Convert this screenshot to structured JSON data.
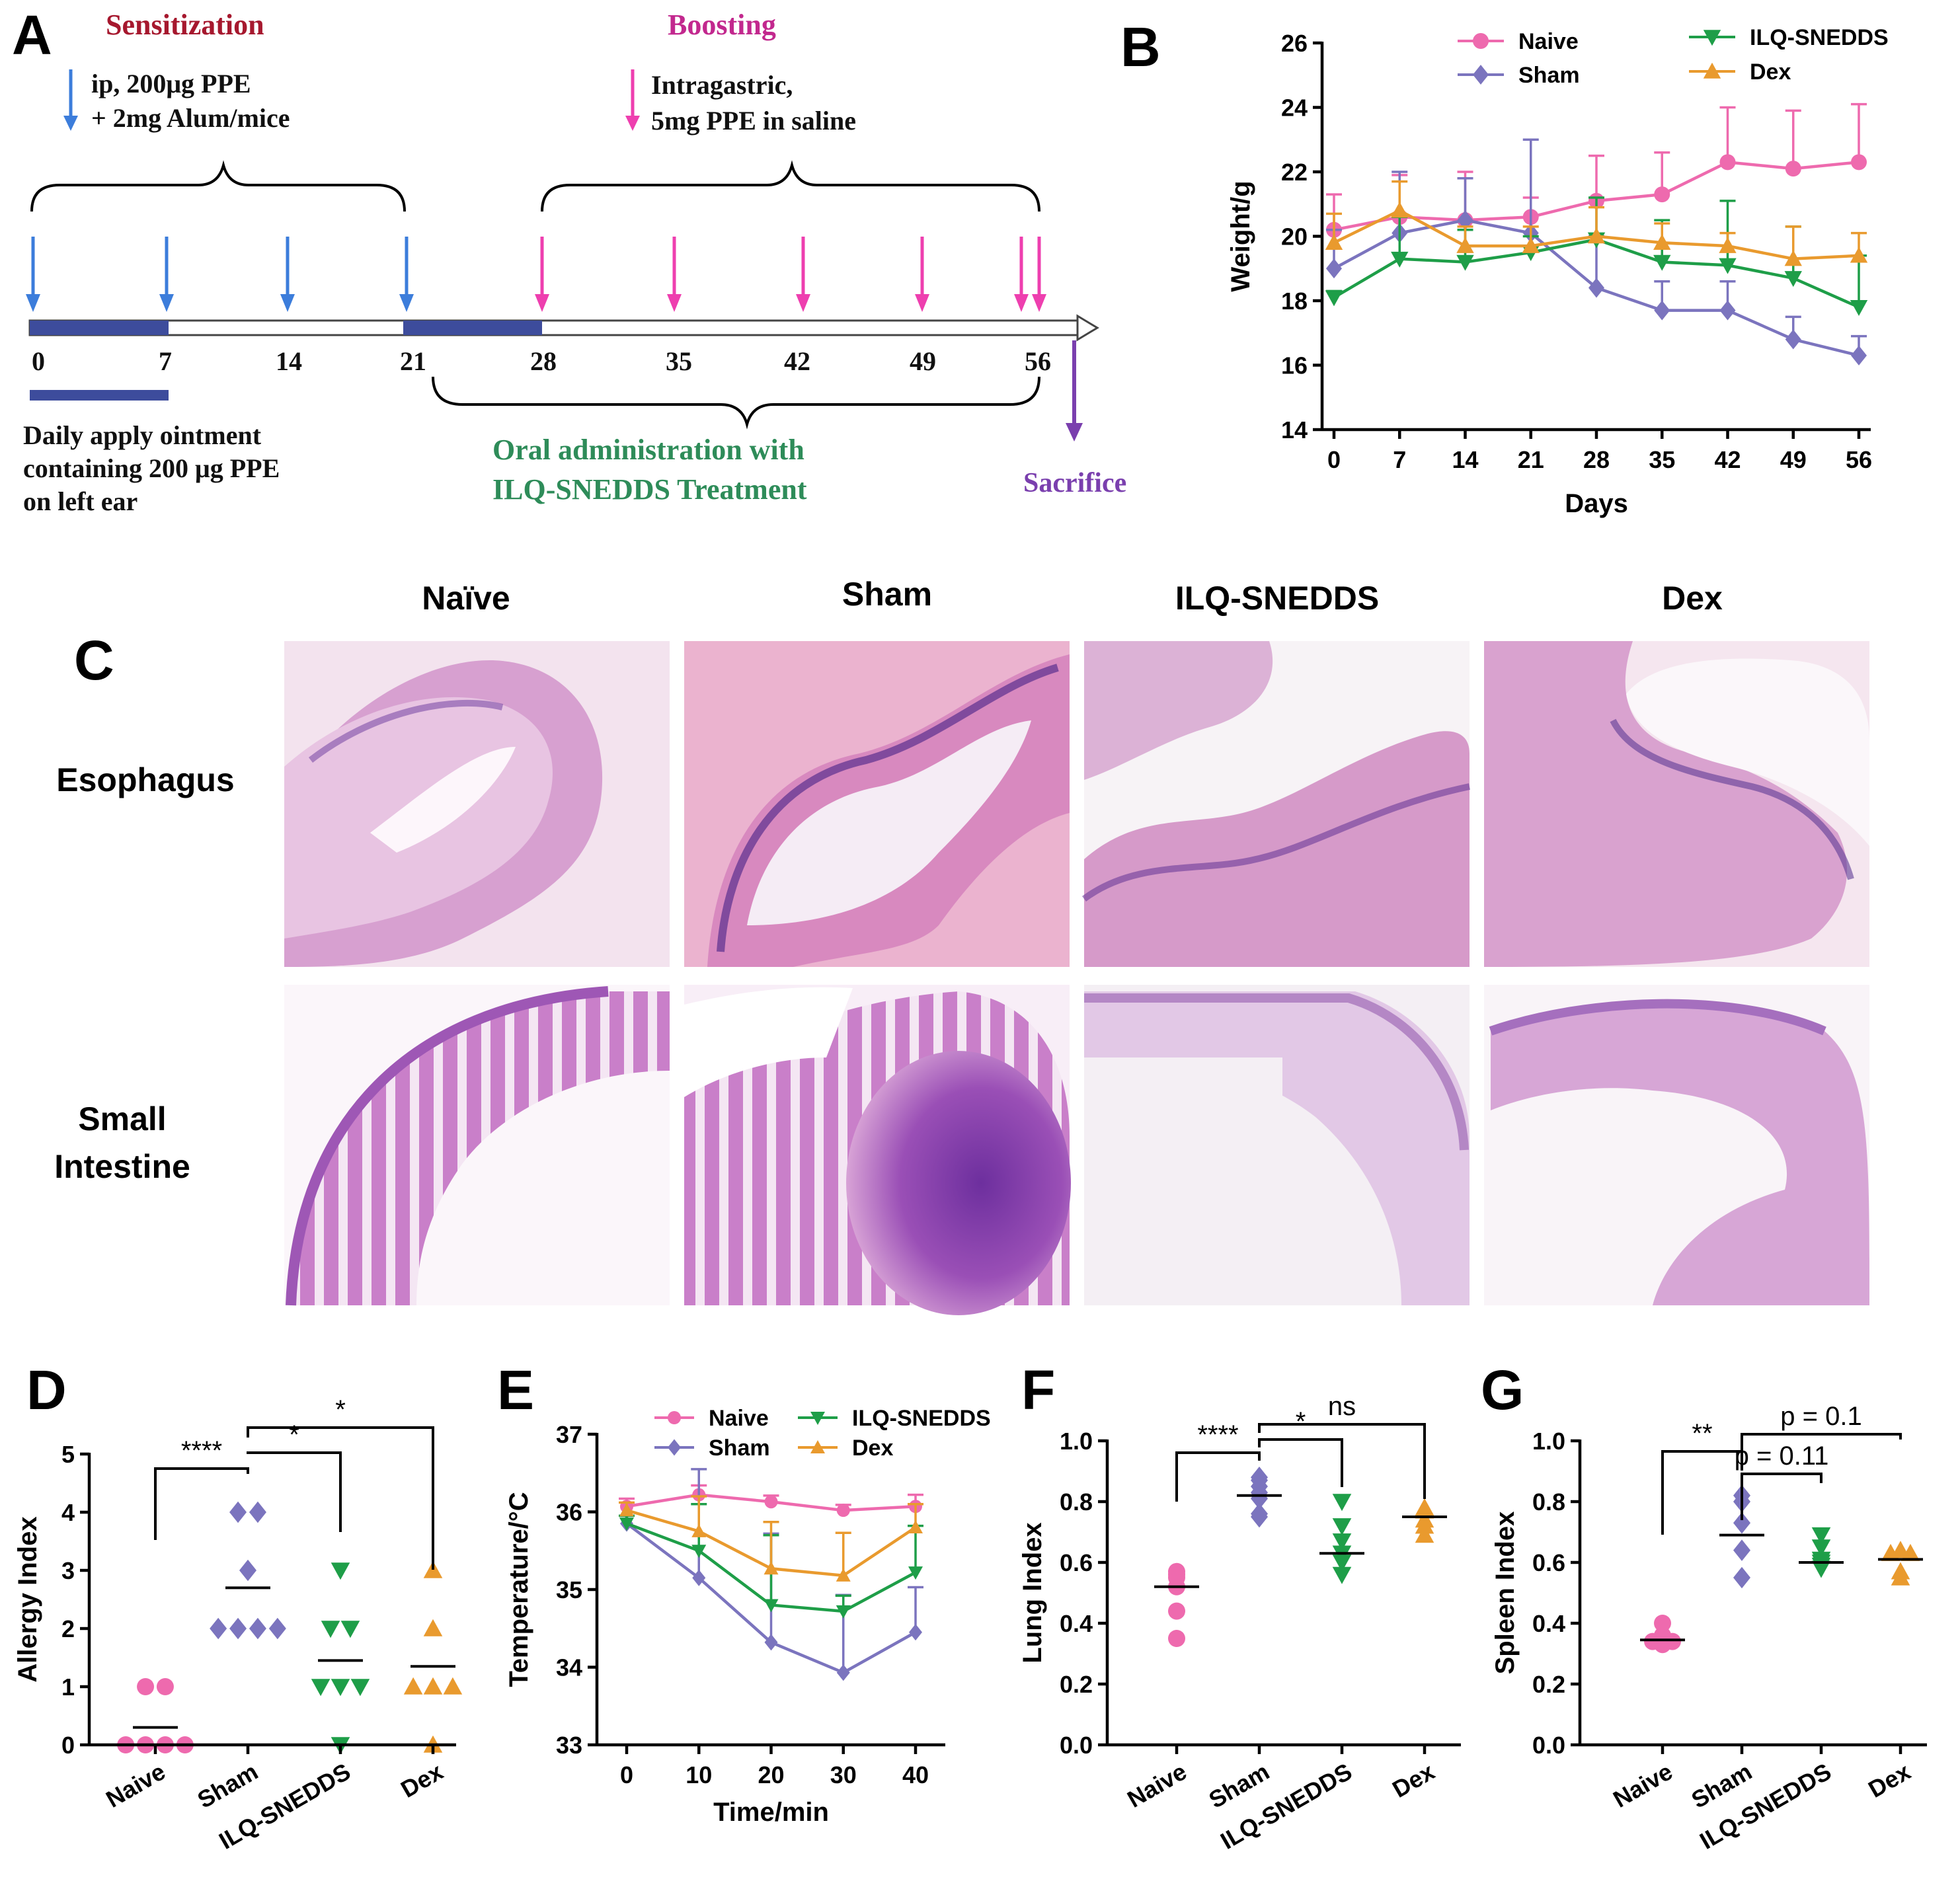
{
  "colors": {
    "naive": "#EE6AAE",
    "sham": "#7B74BE",
    "ilq": "#1E9E48",
    "dex": "#E99A2E",
    "blue_arrow": "#3C7DDB",
    "pink_arrow": "#EE3FAF",
    "purple_arrow": "#7A3FAE",
    "bar_blue": "#3D4C9C",
    "title_red": "#A6182E",
    "title_pink": "#C2288E",
    "oral_green": "#2E8C59",
    "sacrifice_purple": "#7A3FAE"
  },
  "panel_labels": {
    "a": "A",
    "b": "B",
    "c": "C",
    "d": "D",
    "e": "E",
    "f": "F",
    "g": "G"
  },
  "timeline": {
    "sensitization_title": "Sensitization",
    "boosting_title": "Boosting",
    "ip_line1": "ip, 200μg PPE",
    "ip_line2": "+ 2mg Alum/mice",
    "ig_line1": "Intragastric,",
    "ig_line2": "5mg PPE in saline",
    "days": [
      "0",
      "7",
      "14",
      "21",
      "28",
      "35",
      "42",
      "49",
      "56"
    ],
    "ointment_line1": "Daily apply ointment",
    "ointment_line2": "containing 200 μg PPE",
    "ointment_line3": "on left ear",
    "oral_line1": "Oral  administration with",
    "oral_line2": "ILQ-SNEDDS Treatment",
    "sacrifice": "Sacrifice"
  },
  "histology": {
    "columns": [
      "Naïve",
      "Sham",
      "ILQ-SNEDDS",
      "Dex"
    ],
    "rows": [
      [
        "Esophagus"
      ],
      [
        "Small",
        "Intestine"
      ]
    ]
  },
  "chart_data": [
    {
      "id": "B",
      "type": "line",
      "xlabel": "Days",
      "ylabel": "Weight/g",
      "x": [
        0,
        7,
        14,
        21,
        28,
        35,
        42,
        49,
        56
      ],
      "ylim": [
        14,
        26
      ],
      "yticks": [
        14,
        16,
        18,
        20,
        22,
        24,
        26
      ],
      "series": [
        {
          "name": "Naive",
          "marker": "circle",
          "values": [
            20.2,
            20.6,
            20.5,
            20.6,
            21.1,
            21.3,
            22.3,
            22.1,
            22.3
          ],
          "err": [
            1.1,
            1.3,
            1.5,
            0.6,
            1.4,
            1.3,
            1.7,
            1.8,
            1.8
          ]
        },
        {
          "name": "Sham",
          "marker": "diamond",
          "values": [
            19.0,
            20.1,
            20.5,
            20.1,
            18.4,
            17.7,
            17.7,
            16.8,
            16.3
          ],
          "err": [
            1.2,
            1.9,
            1.3,
            2.9,
            1.6,
            0.9,
            0.9,
            0.7,
            0.6
          ]
        },
        {
          "name": "ILQ-SNEDDS",
          "marker": "triangle-down",
          "values": [
            18.1,
            19.3,
            19.2,
            19.5,
            19.9,
            19.2,
            19.1,
            18.7,
            17.8
          ],
          "err": [
            0.2,
            1.3,
            1.0,
            0.5,
            1.3,
            1.3,
            2.0,
            1.6,
            1.6
          ]
        },
        {
          "name": "Dex",
          "marker": "triangle-up",
          "values": [
            19.8,
            20.8,
            19.7,
            19.7,
            20.0,
            19.8,
            19.7,
            19.3,
            19.4
          ],
          "err": [
            0.9,
            0.9,
            0.6,
            0.6,
            0.9,
            0.6,
            0.4,
            1.0,
            0.7
          ]
        }
      ]
    },
    {
      "id": "D",
      "type": "scatter",
      "ylabel": "Allergy Index",
      "categories": [
        "Naive",
        "Sham",
        "ILQ-SNEDDS",
        "Dex"
      ],
      "ylim": [
        0,
        5
      ],
      "yticks": [
        0,
        1,
        2,
        3,
        4,
        5
      ],
      "groups": [
        {
          "name": "Naive",
          "marker": "circle",
          "points": [
            0,
            0,
            0,
            0,
            1,
            1
          ],
          "mean": 0.3
        },
        {
          "name": "Sham",
          "marker": "diamond",
          "points": [
            2,
            2,
            2,
            2,
            3,
            4,
            4
          ],
          "mean": 2.7
        },
        {
          "name": "ILQ-SNEDDS",
          "marker": "triangle-down",
          "points": [
            0,
            1,
            1,
            1,
            2,
            2,
            3
          ],
          "mean": 1.45
        },
        {
          "name": "Dex",
          "marker": "triangle-up",
          "points": [
            0,
            1,
            1,
            1,
            2,
            3
          ],
          "mean": 1.35
        }
      ],
      "significance": [
        {
          "from": "Naive",
          "to": "Sham",
          "label": "****"
        },
        {
          "from": "Sham",
          "to": "ILQ-SNEDDS",
          "label": "*"
        },
        {
          "from": "Sham",
          "to": "Dex",
          "label": "*"
        }
      ]
    },
    {
      "id": "E",
      "type": "line",
      "xlabel": "Time/min",
      "ylabel": "Temperature/°C",
      "x": [
        0,
        10,
        20,
        30,
        40
      ],
      "ylim": [
        33,
        37
      ],
      "yticks": [
        33,
        34,
        35,
        36,
        37
      ],
      "series": [
        {
          "name": "Naive",
          "marker": "circle",
          "values": [
            36.07,
            36.22,
            36.13,
            36.02,
            36.07
          ],
          "err": [
            0.1,
            0.12,
            0.08,
            0.07,
            0.15
          ]
        },
        {
          "name": "Sham",
          "marker": "diamond",
          "values": [
            35.85,
            35.15,
            34.32,
            33.93,
            34.45
          ],
          "err": [
            0.1,
            1.4,
            1.4,
            1.0,
            0.58
          ]
        },
        {
          "name": "ILQ-SNEDDS",
          "marker": "triangle-down",
          "values": [
            35.85,
            35.5,
            34.8,
            34.72,
            35.22
          ],
          "err": [
            0.1,
            0.6,
            0.9,
            0.2,
            0.6
          ]
        },
        {
          "name": "Dex",
          "marker": "triangle-up",
          "values": [
            36.02,
            35.75,
            35.27,
            35.18,
            35.8
          ],
          "err": [
            0.1,
            0.45,
            0.6,
            0.55,
            0.3
          ]
        }
      ]
    },
    {
      "id": "F",
      "type": "scatter",
      "ylabel": "Lung Index",
      "categories": [
        "Naive",
        "Sham",
        "ILQ-SNEDDS",
        "Dex"
      ],
      "ylim": [
        0,
        1.0
      ],
      "yticks": [
        0.0,
        0.2,
        0.4,
        0.6,
        0.8,
        1.0
      ],
      "groups": [
        {
          "name": "Naive",
          "marker": "circle",
          "points": [
            0.35,
            0.44,
            0.52,
            0.55,
            0.56,
            0.57
          ],
          "mean": 0.52
        },
        {
          "name": "Sham",
          "marker": "diamond",
          "points": [
            0.75,
            0.76,
            0.81,
            0.82,
            0.83,
            0.85,
            0.87,
            0.88
          ],
          "mean": 0.82
        },
        {
          "name": "ILQ-SNEDDS",
          "marker": "triangle-down",
          "points": [
            0.56,
            0.6,
            0.63,
            0.67,
            0.72,
            0.8
          ],
          "mean": 0.63
        },
        {
          "name": "Dex",
          "marker": "triangle-up",
          "points": [
            0.69,
            0.72,
            0.74,
            0.77,
            0.78
          ],
          "mean": 0.75
        }
      ],
      "significance": [
        {
          "from": "Naive",
          "to": "Sham",
          "label": "****"
        },
        {
          "from": "Sham",
          "to": "ILQ-SNEDDS",
          "label": "*"
        },
        {
          "from": "Sham",
          "to": "Dex",
          "label": "ns"
        }
      ]
    },
    {
      "id": "G",
      "type": "scatter",
      "ylabel": "Spleen Index",
      "categories": [
        "Naive",
        "Sham",
        "ILQ-SNEDDS",
        "Dex"
      ],
      "ylim": [
        0,
        1.0
      ],
      "yticks": [
        0.0,
        0.2,
        0.4,
        0.6,
        0.8,
        1.0
      ],
      "groups": [
        {
          "name": "Naive",
          "marker": "circle",
          "points": [
            0.33,
            0.34,
            0.34,
            0.35,
            0.36,
            0.4
          ],
          "mean": 0.345
        },
        {
          "name": "Sham",
          "marker": "diamond",
          "points": [
            0.55,
            0.64,
            0.73,
            0.8,
            0.82
          ],
          "mean": 0.69
        },
        {
          "name": "ILQ-SNEDDS",
          "marker": "triangle-down",
          "points": [
            0.58,
            0.59,
            0.6,
            0.61,
            0.65,
            0.69
          ],
          "mean": 0.6
        },
        {
          "name": "Dex",
          "marker": "triangle-up",
          "points": [
            0.55,
            0.57,
            0.63,
            0.63,
            0.64
          ],
          "mean": 0.61
        }
      ],
      "significance": [
        {
          "from": "Naive",
          "to": "Sham",
          "label": "**"
        },
        {
          "from": "Sham",
          "to": "ILQ-SNEDDS",
          "label": "p = 0.11"
        },
        {
          "from": "Sham",
          "to": "Dex",
          "label": "p = 0.1"
        }
      ]
    }
  ]
}
